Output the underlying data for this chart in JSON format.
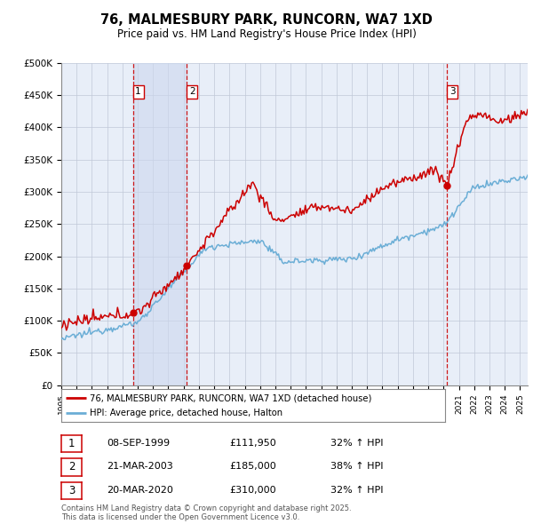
{
  "title": "76, MALMESBURY PARK, RUNCORN, WA7 1XD",
  "subtitle": "Price paid vs. HM Land Registry's House Price Index (HPI)",
  "ylabel_ticks": [
    "£0",
    "£50K",
    "£100K",
    "£150K",
    "£200K",
    "£250K",
    "£300K",
    "£350K",
    "£400K",
    "£450K",
    "£500K"
  ],
  "ylim": [
    0,
    500000
  ],
  "xlim_start": 1995.0,
  "xlim_end": 2025.5,
  "transactions": [
    {
      "label": "1",
      "date_num": 1999.69,
      "price": 111950
    },
    {
      "label": "2",
      "date_num": 2003.22,
      "price": 185000
    },
    {
      "label": "3",
      "date_num": 2020.22,
      "price": 310000
    }
  ],
  "legend_line1": "76, MALMESBURY PARK, RUNCORN, WA7 1XD (detached house)",
  "legend_line2": "HPI: Average price, detached house, Halton",
  "table_rows": [
    [
      "1",
      "08-SEP-1999",
      "£111,950",
      "32% ↑ HPI"
    ],
    [
      "2",
      "21-MAR-2003",
      "£185,000",
      "38% ↑ HPI"
    ],
    [
      "3",
      "20-MAR-2020",
      "£310,000",
      "32% ↑ HPI"
    ]
  ],
  "footer": "Contains HM Land Registry data © Crown copyright and database right 2025.\nThis data is licensed under the Open Government Licence v3.0.",
  "hpi_color": "#6baed6",
  "price_color": "#cc0000",
  "bg_color": "#e8eef8",
  "grid_color": "#c0c8d8",
  "shade_color": "#ccd8ee",
  "dashed_color": "#cc0000",
  "label_box_color": "#cc0000"
}
